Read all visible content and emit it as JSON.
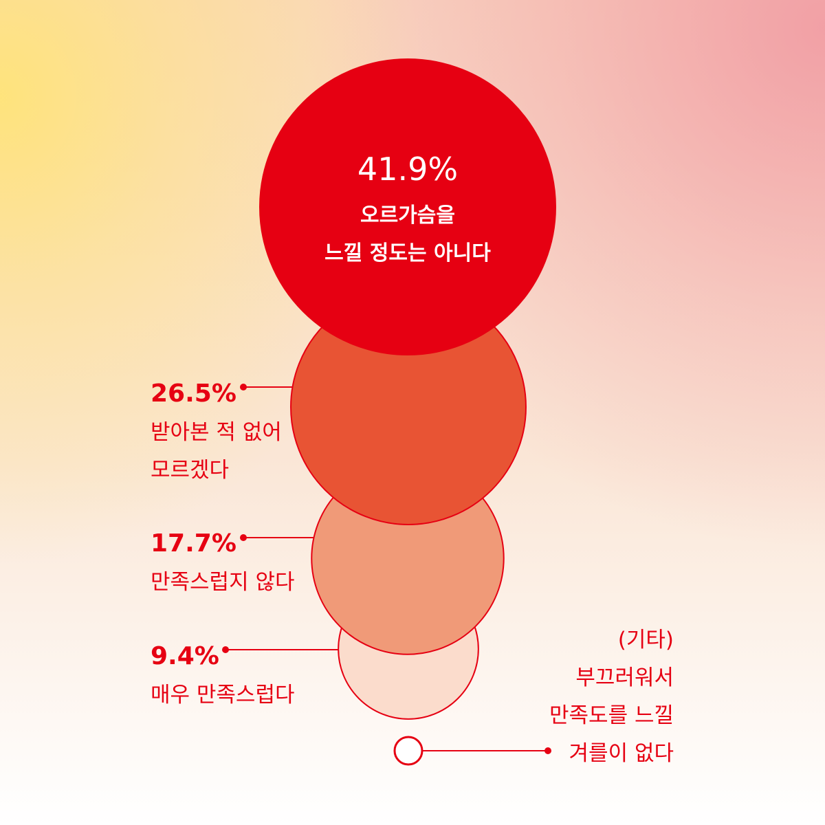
{
  "chart_data": {
    "type": "bubble",
    "title": "",
    "unit": "%",
    "series": [
      {
        "value": 41.9,
        "value_label": "41.9%",
        "label_lines": [
          "오르가슴을",
          "느낄 정도는 아니다"
        ],
        "color": "#e60012"
      },
      {
        "value": 26.5,
        "value_label": "26.5%",
        "label_lines": [
          "받아본 적 없어",
          "모르겠다"
        ],
        "color": "#e85434"
      },
      {
        "value": 17.7,
        "value_label": "17.7%",
        "label_lines": [
          "만족스럽지 않다"
        ],
        "color": "#f09a78"
      },
      {
        "value": 9.4,
        "value_label": "9.4%",
        "label_lines": [
          "매우 만족스럽다"
        ],
        "color": "#fbdccc"
      },
      {
        "value": null,
        "value_label": "",
        "label_lines": [
          "(기타)",
          "부끄러워서",
          "만족도를 느낄",
          "겨를이 없다"
        ],
        "color": "#ffffff"
      }
    ],
    "accent_color": "#e60012"
  }
}
